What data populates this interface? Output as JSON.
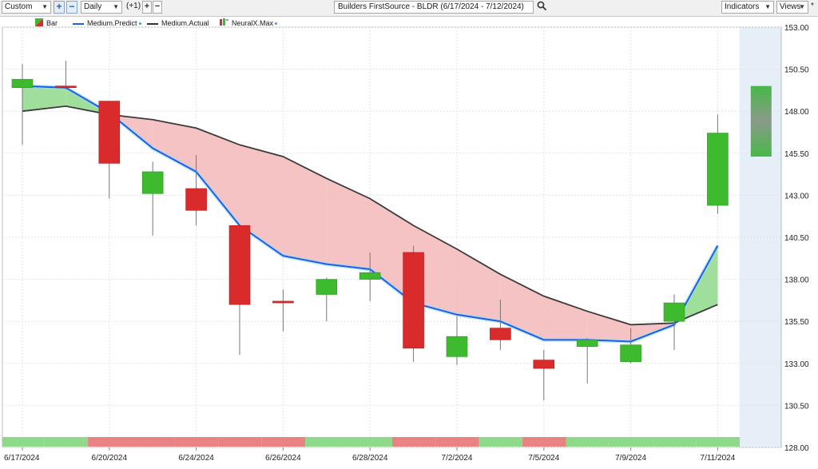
{
  "toolbar": {
    "period_select": "Custom",
    "add_label": "+",
    "remove_label": "−",
    "interval_select": "Daily",
    "offset_label": "(+1)",
    "plus_label": "+",
    "minus_label": "−",
    "chart_title": "Builders FirstSource - BLDR (6/17/2024 - 7/12/2024)",
    "indicators_label": "Indicators",
    "views_label": "Views",
    "asterisk": "*"
  },
  "legend": [
    {
      "label": "Bar",
      "icon": "bar-swatch-icon"
    },
    {
      "label": "Medium.Predict",
      "color": "#1e5fe8"
    },
    {
      "label": "Medium.Actual",
      "color": "#333333"
    },
    {
      "label": "NeuralX.Max",
      "icon": "neuralx-swatch-icon"
    }
  ],
  "colors": {
    "up": "#3dba2e",
    "down": "#d92b2b",
    "predict": "#1e5fe8",
    "actual": "#3b3b3b",
    "fill_down": "#f3b8b8",
    "fill_up": "#8fd98a",
    "future_bg": "#e6eef8",
    "band_green": "#8fd98a",
    "band_red": "#e98282"
  },
  "chart_data": {
    "type": "candlestick",
    "y_ticks": [
      "153.00",
      "150.50",
      "148.00",
      "145.50",
      "143.00",
      "140.50",
      "138.00",
      "135.50",
      "133.00",
      "130.50",
      "128.00"
    ],
    "ylim": [
      128.0,
      153.0
    ],
    "x_tick_labels": [
      {
        "i": 0,
        "label": "6/17/2024"
      },
      {
        "i": 2,
        "label": "6/20/2024"
      },
      {
        "i": 4,
        "label": "6/24/2024"
      },
      {
        "i": 6,
        "label": "6/26/2024"
      },
      {
        "i": 8,
        "label": "6/28/2024"
      },
      {
        "i": 10,
        "label": "7/2/2024"
      },
      {
        "i": 12,
        "label": "7/5/2024"
      },
      {
        "i": 14,
        "label": "7/9/2024"
      },
      {
        "i": 16,
        "label": "7/11/2024"
      }
    ],
    "candles": [
      {
        "open": 149.4,
        "close": 149.9,
        "high": 150.8,
        "low": 146.0
      },
      {
        "open": 149.5,
        "close": 149.4,
        "high": 151.0,
        "low": 149.3
      },
      {
        "open": 148.6,
        "close": 144.9,
        "high": 148.6,
        "low": 142.8
      },
      {
        "open": 143.1,
        "close": 144.4,
        "high": 145.0,
        "low": 140.6
      },
      {
        "open": 143.4,
        "close": 142.1,
        "high": 145.4,
        "low": 141.2
      },
      {
        "open": 141.2,
        "close": 136.5,
        "high": 141.2,
        "low": 133.5
      },
      {
        "open": 136.7,
        "close": 136.6,
        "high": 137.4,
        "low": 134.9
      },
      {
        "open": 137.1,
        "close": 138.0,
        "high": 138.1,
        "low": 135.5
      },
      {
        "open": 138.0,
        "close": 138.4,
        "high": 139.6,
        "low": 136.7
      },
      {
        "open": 139.6,
        "close": 133.9,
        "high": 140.0,
        "low": 133.1
      },
      {
        "open": 133.4,
        "close": 134.6,
        "high": 135.8,
        "low": 132.9
      },
      {
        "open": 135.1,
        "close": 134.4,
        "high": 136.8,
        "low": 133.8
      },
      {
        "open": 133.2,
        "close": 132.7,
        "high": 133.8,
        "low": 130.8
      },
      {
        "open": 134.0,
        "close": 134.4,
        "high": 134.5,
        "low": 131.8
      },
      {
        "open": 133.1,
        "close": 134.1,
        "high": 135.1,
        "low": 133.0
      },
      {
        "open": 135.5,
        "close": 136.6,
        "high": 137.1,
        "low": 133.8
      },
      {
        "open": 142.4,
        "close": 146.7,
        "high": 147.8,
        "low": 141.9
      },
      {
        "open": 145.3,
        "close": 149.5,
        "high": null,
        "low": null,
        "projection": true
      }
    ],
    "series": [
      {
        "name": "Medium.Predict",
        "values": [
          149.5,
          149.4,
          147.9,
          145.8,
          144.4,
          141.2,
          139.4,
          138.9,
          138.6,
          136.6,
          135.9,
          135.5,
          134.4,
          134.4,
          134.3,
          135.3,
          140.0
        ]
      },
      {
        "name": "Medium.Actual",
        "values": [
          148.0,
          148.3,
          147.8,
          147.5,
          147.0,
          146.0,
          145.3,
          144.0,
          142.8,
          141.2,
          139.8,
          138.3,
          137.0,
          136.1,
          135.3,
          135.4,
          136.5
        ]
      }
    ],
    "bottom_band": [
      "up",
      "up",
      "down",
      "down",
      "down",
      "down",
      "down",
      "up",
      "up",
      "down",
      "down",
      "up",
      "down",
      "up",
      "up",
      "up",
      "up"
    ]
  }
}
